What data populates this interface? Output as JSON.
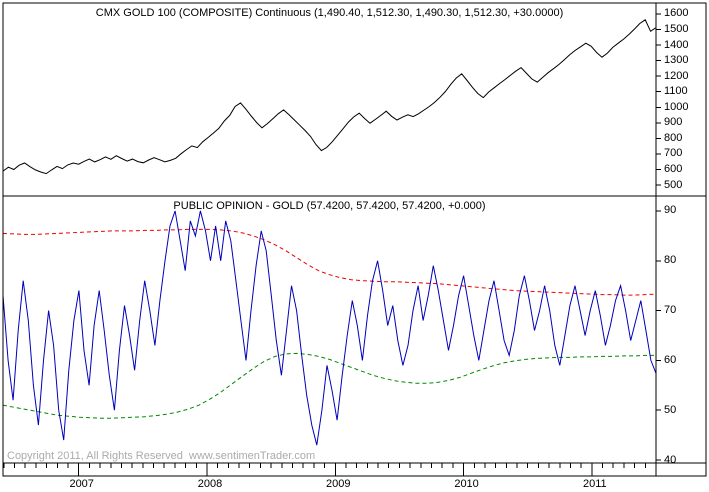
{
  "price_panel": {
    "title": "CMX GOLD 100 (COMPOSITE) Continuous (1,490.40, 1,512.30, 1,490.30, 1,512.30, +30.0000)",
    "y_ticks": [
      1600,
      1500,
      1400,
      1300,
      1200,
      1100,
      1000,
      900,
      800,
      700,
      600,
      500
    ]
  },
  "sentiment_panel": {
    "title": "PUBLIC OPINION - GOLD (57.4200, 57.4200, 57.4200, +0.000)",
    "y_ticks": [
      90,
      80,
      70,
      60,
      50,
      40
    ]
  },
  "x_axis": {
    "year_labels": [
      "2007",
      "2008",
      "2009",
      "2010",
      "2011"
    ],
    "year_values": [
      2007,
      2008,
      2009,
      2010,
      2011
    ]
  },
  "footer": {
    "copyright": "Copyright 2011, All Rights Reserved  www.sentimenTrader.com"
  },
  "colors": {
    "price_line": "#000000",
    "sentiment_line": "#0000bb",
    "upper_band": "#ee0000",
    "lower_band": "#008800",
    "border": "#000000",
    "copyright_text": "#ababab"
  },
  "chart_data": [
    {
      "type": "line",
      "panel": "price",
      "title": "CMX GOLD 100 (COMPOSITE) Continuous",
      "quote": {
        "open": "1,490.40",
        "high": "1,512.30",
        "low": "1,490.30",
        "last": "1,512.30",
        "change": "+30.0000"
      },
      "x_range": [
        2006.41,
        2011.5
      ],
      "x_tick_labels": [
        "2007",
        "2008",
        "2009",
        "2010",
        "2011"
      ],
      "ylim": [
        430,
        1670
      ],
      "y_ticks": [
        1600,
        1500,
        1400,
        1300,
        1200,
        1100,
        1000,
        900,
        800,
        700,
        600,
        500
      ],
      "grid": false,
      "legend": false,
      "series": [
        {
          "name": "CMX GOLD 100 Composite Continuous price",
          "color": "#000000",
          "style": "solid",
          "values": [
            590,
            615,
            600,
            628,
            642,
            618,
            598,
            584,
            574,
            598,
            620,
            606,
            630,
            642,
            634,
            652,
            668,
            649,
            663,
            681,
            666,
            689,
            671,
            654,
            667,
            651,
            643,
            661,
            676,
            663,
            649,
            659,
            672,
            702,
            728,
            752,
            741,
            778,
            806,
            835,
            865,
            912,
            948,
            1005,
            1028,
            988,
            944,
            902,
            868,
            895,
            926,
            958,
            983,
            952,
            918,
            884,
            850,
            812,
            760,
            722,
            742,
            778,
            820,
            862,
            905,
            938,
            962,
            928,
            898,
            922,
            948,
            975,
            942,
            918,
            936,
            952,
            940,
            958,
            982,
            1005,
            1032,
            1065,
            1102,
            1148,
            1188,
            1215,
            1172,
            1128,
            1088,
            1062,
            1098,
            1125,
            1152,
            1178,
            1205,
            1232,
            1255,
            1218,
            1182,
            1162,
            1192,
            1222,
            1248,
            1275,
            1305,
            1338,
            1365,
            1388,
            1412,
            1392,
            1352,
            1322,
            1348,
            1385,
            1412,
            1438,
            1468,
            1502,
            1538,
            1562,
            1488,
            1512
          ]
        }
      ]
    },
    {
      "type": "line",
      "panel": "sentiment",
      "title": "PUBLIC OPINION - GOLD",
      "quote": {
        "open": "57.4200",
        "high": "57.4200",
        "low": "57.4200",
        "change": "+0.000"
      },
      "x_range": [
        2006.41,
        2011.5
      ],
      "x_tick_labels": [
        "2007",
        "2008",
        "2009",
        "2010",
        "2011"
      ],
      "ylim": [
        39.4,
        93
      ],
      "y_ticks": [
        90,
        80,
        70,
        60,
        50,
        40
      ],
      "grid": false,
      "legend": false,
      "series": [
        {
          "name": "Public Opinion - Gold",
          "color": "#0000bb",
          "style": "solid",
          "values": [
            73,
            60,
            52,
            66,
            76,
            68,
            55,
            47,
            60,
            70,
            63,
            50,
            44,
            58,
            68,
            74,
            62,
            55,
            67,
            74,
            66,
            57,
            50,
            62,
            71,
            65,
            58,
            68,
            76,
            70,
            63,
            72,
            80,
            87,
            90,
            84,
            78,
            88,
            85,
            90,
            86,
            80,
            87,
            80,
            88,
            84,
            76,
            68,
            60,
            70,
            79,
            86,
            82,
            73,
            64,
            57,
            66,
            75,
            70,
            61,
            53,
            47,
            43,
            50,
            59,
            54,
            48,
            57,
            65,
            72,
            67,
            60,
            69,
            76,
            80,
            74,
            67,
            71,
            64,
            59,
            63,
            70,
            75,
            68,
            73,
            79,
            74,
            68,
            62,
            67,
            73,
            77,
            71,
            65,
            60,
            66,
            72,
            76,
            70,
            64,
            61,
            66,
            73,
            77,
            72,
            66,
            70,
            75,
            70,
            63,
            59,
            65,
            71,
            75,
            70,
            65,
            70,
            74,
            69,
            63,
            67,
            72,
            75,
            70,
            64,
            68,
            72,
            66,
            60,
            57.4
          ]
        },
        {
          "name": "Upper band (excessive optimism)",
          "color": "#ee0000",
          "style": "dashed",
          "values": [
            85.5,
            85.4,
            85.3,
            85.3,
            85.4,
            85.5,
            85.6,
            85.7,
            85.8,
            85.9,
            86.0,
            86.0,
            86.0,
            86.1,
            86.1,
            86.2,
            86.2,
            86.3,
            86.3,
            86.3,
            86.2,
            86.0,
            85.6,
            85.0,
            84.2,
            83.2,
            82.0,
            80.6,
            79.2,
            78.0,
            77.2,
            76.6,
            76.2,
            76.0,
            75.9,
            75.8,
            75.8,
            75.7,
            75.6,
            75.5,
            75.4,
            75.2,
            75.0,
            74.8,
            74.6,
            74.4,
            74.2,
            74.0,
            73.9,
            73.8,
            73.7,
            73.6,
            73.5,
            73.4,
            73.3,
            73.2,
            73.2,
            73.1,
            73.1,
            73.2,
            73.3
          ]
        },
        {
          "name": "Lower band (excessive pessimism)",
          "color": "#008800",
          "style": "dashed",
          "values": [
            51.0,
            50.6,
            50.2,
            49.8,
            49.4,
            49.0,
            48.8,
            48.6,
            48.5,
            48.4,
            48.4,
            48.5,
            48.6,
            48.7,
            48.9,
            49.2,
            49.6,
            50.2,
            51.0,
            52.2,
            53.6,
            55.2,
            56.8,
            58.4,
            59.8,
            60.8,
            61.3,
            61.4,
            61.2,
            60.8,
            60.2,
            59.4,
            58.6,
            57.8,
            57.0,
            56.4,
            55.9,
            55.6,
            55.4,
            55.4,
            55.6,
            56.0,
            56.6,
            57.4,
            58.2,
            58.9,
            59.5,
            59.9,
            60.2,
            60.4,
            60.5,
            60.6,
            60.6,
            60.7,
            60.7,
            60.8,
            60.8,
            60.9,
            60.9,
            61.0,
            61.0
          ]
        }
      ]
    }
  ]
}
